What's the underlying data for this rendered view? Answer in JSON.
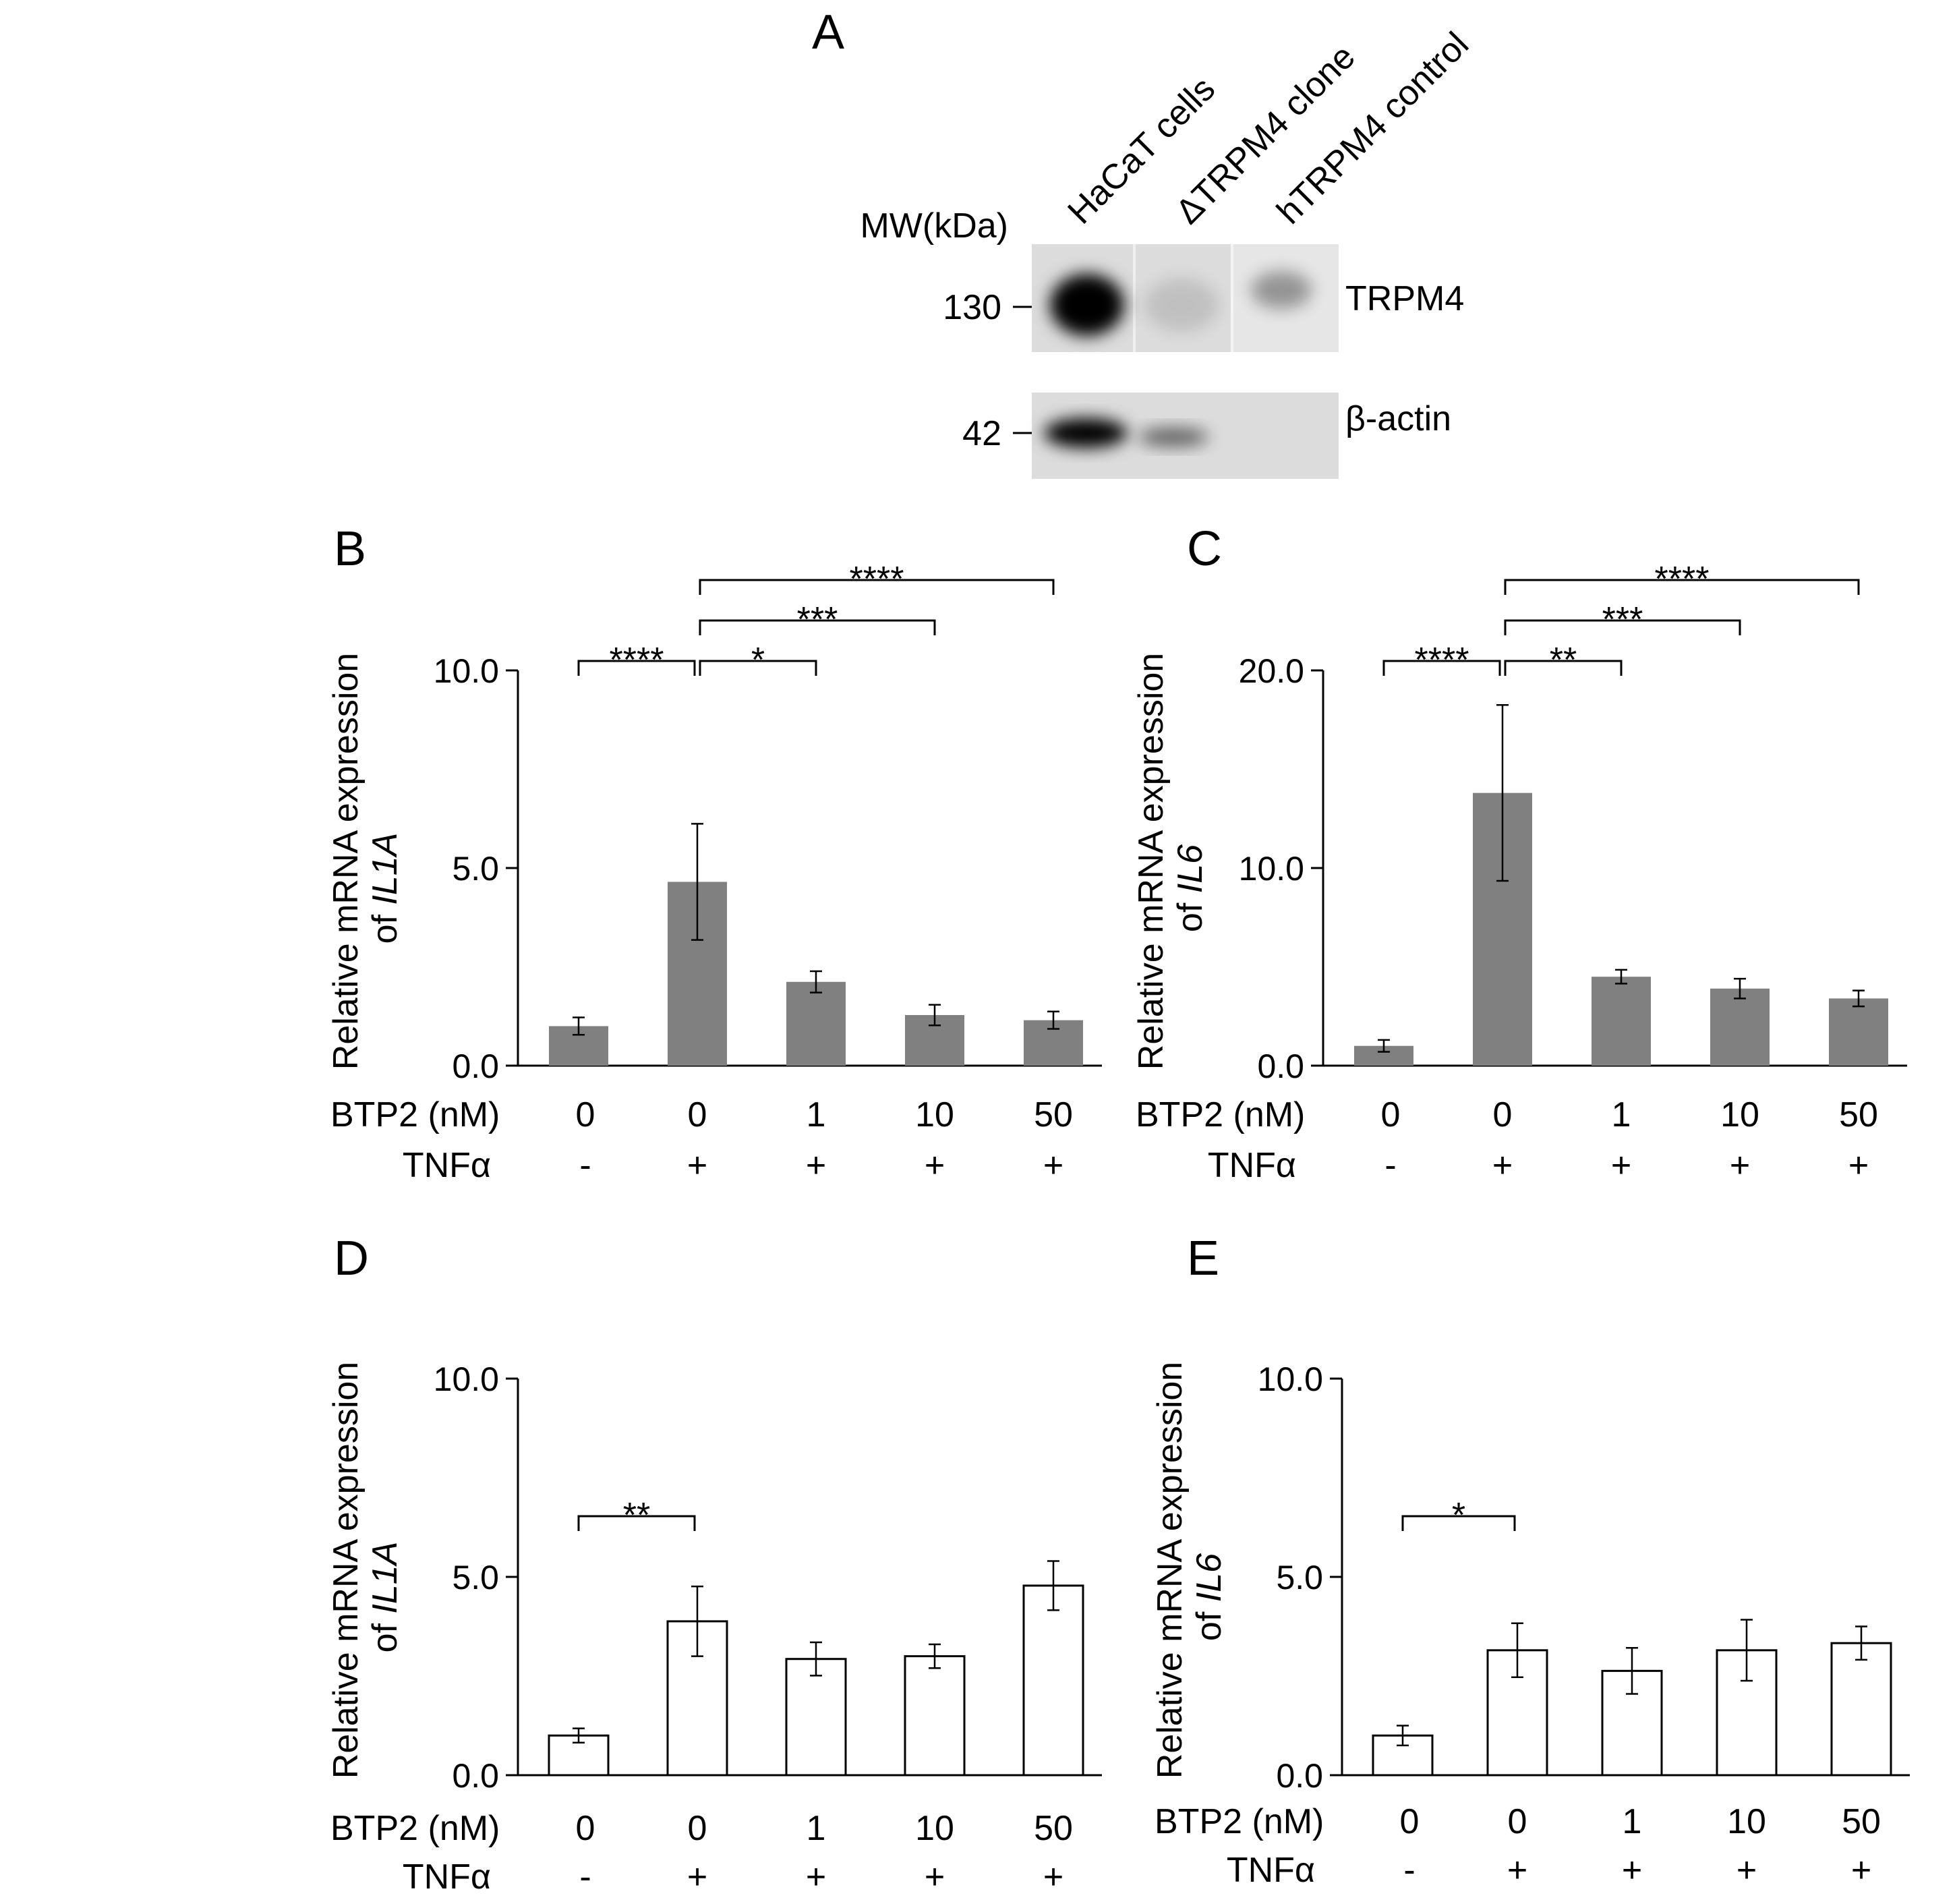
{
  "panel_a": {
    "label": "A",
    "lane_labels": [
      "HaCaT cells",
      "ΔTRPM4 clone",
      "hTRPM4 control"
    ],
    "mw_label": "MW(kDa)",
    "bands": [
      {
        "protein": "TRPM4",
        "mw": "130",
        "intensity": [
          1.0,
          0.12,
          0.35
        ]
      },
      {
        "protein": "β-actin",
        "mw": "42",
        "intensity": [
          1.0,
          0.55,
          0.0
        ]
      }
    ]
  },
  "chart_data": [
    {
      "panel": "B",
      "type": "bar",
      "bar_color": "#808080",
      "ylabel_main": "Relative mRNA expression",
      "ylabel_prefix": "of ",
      "ylabel_gene": "IL1A",
      "ylim": [
        0,
        10
      ],
      "yticks": [
        "0.0",
        "5.0",
        "10.0"
      ],
      "ytick_values": [
        0,
        5,
        10
      ],
      "values": [
        1.0,
        4.65,
        2.12,
        1.28,
        1.15
      ],
      "errors": [
        0.22,
        1.47,
        0.27,
        0.26,
        0.22
      ],
      "btp2_label": "BTP2 (nM)",
      "btp2": [
        "0",
        "0",
        "1",
        "10",
        "50"
      ],
      "tnf_label": "TNFα",
      "tnf": [
        "-",
        "+",
        "+",
        "+",
        "+"
      ],
      "significance": [
        {
          "from": 0,
          "to": 1,
          "text": "****",
          "level": 0
        },
        {
          "from": 1,
          "to": 2,
          "text": "*",
          "level": 0
        },
        {
          "from": 1,
          "to": 3,
          "text": "***",
          "level": 1
        },
        {
          "from": 1,
          "to": 4,
          "text": "****",
          "level": 2
        }
      ]
    },
    {
      "panel": "C",
      "type": "bar",
      "bar_color": "#808080",
      "ylabel_main": "Relative mRNA expression",
      "ylabel_prefix": "of ",
      "ylabel_gene": "IL6",
      "ylim": [
        0,
        20
      ],
      "yticks": [
        "0.0",
        "10.0",
        "20.0"
      ],
      "ytick_values": [
        0,
        10,
        20
      ],
      "values": [
        1.0,
        13.8,
        4.5,
        3.9,
        3.4
      ],
      "errors": [
        0.3,
        4.45,
        0.35,
        0.5,
        0.4
      ],
      "btp2_label": "BTP2 (nM)",
      "btp2": [
        "0",
        "0",
        "1",
        "10",
        "50"
      ],
      "tnf_label": "TNFα",
      "tnf": [
        "-",
        "+",
        "+",
        "+",
        "+"
      ],
      "significance": [
        {
          "from": 0,
          "to": 1,
          "text": "****",
          "level": 0
        },
        {
          "from": 1,
          "to": 2,
          "text": "**",
          "level": 0
        },
        {
          "from": 1,
          "to": 3,
          "text": "***",
          "level": 1
        },
        {
          "from": 1,
          "to": 4,
          "text": "****",
          "level": 2
        }
      ]
    },
    {
      "panel": "D",
      "type": "bar",
      "bar_color": "#ffffff",
      "ylabel_main": "Relative mRNA expression",
      "ylabel_prefix": "of ",
      "ylabel_gene": "IL1A",
      "ylim": [
        0,
        10
      ],
      "yticks": [
        "0.0",
        "5.0",
        "10.0"
      ],
      "ytick_values": [
        0,
        5,
        10
      ],
      "values": [
        1.0,
        3.88,
        2.93,
        3.0,
        4.78
      ],
      "errors": [
        0.18,
        0.88,
        0.42,
        0.3,
        0.62
      ],
      "btp2_label": "BTP2 (nM)",
      "btp2": [
        "0",
        "0",
        "1",
        "10",
        "50"
      ],
      "tnf_label": "TNFα",
      "tnf": [
        "-",
        "+",
        "+",
        "+",
        "+"
      ],
      "significance": [
        {
          "from": 0,
          "to": 1,
          "text": "**",
          "level": 0
        }
      ]
    },
    {
      "panel": "E",
      "type": "bar",
      "bar_color": "#ffffff",
      "ylabel_main": "Relative mRNA expression",
      "ylabel_prefix": "of ",
      "ylabel_gene": "IL6",
      "ylim": [
        0,
        10
      ],
      "yticks": [
        "0.0",
        "5.0",
        "10.0"
      ],
      "ytick_values": [
        0,
        5,
        10
      ],
      "values": [
        1.0,
        3.15,
        2.63,
        3.15,
        3.33
      ],
      "errors": [
        0.25,
        0.68,
        0.58,
        0.77,
        0.42
      ],
      "btp2_label": "BTP2 (nM)",
      "btp2": [
        "0",
        "0",
        "1",
        "10",
        "50"
      ],
      "tnf_label": "TNFα",
      "tnf": [
        "-",
        "+",
        "+",
        "+",
        "+"
      ],
      "significance": [
        {
          "from": 0,
          "to": 1,
          "text": "*",
          "level": 0
        }
      ]
    }
  ]
}
